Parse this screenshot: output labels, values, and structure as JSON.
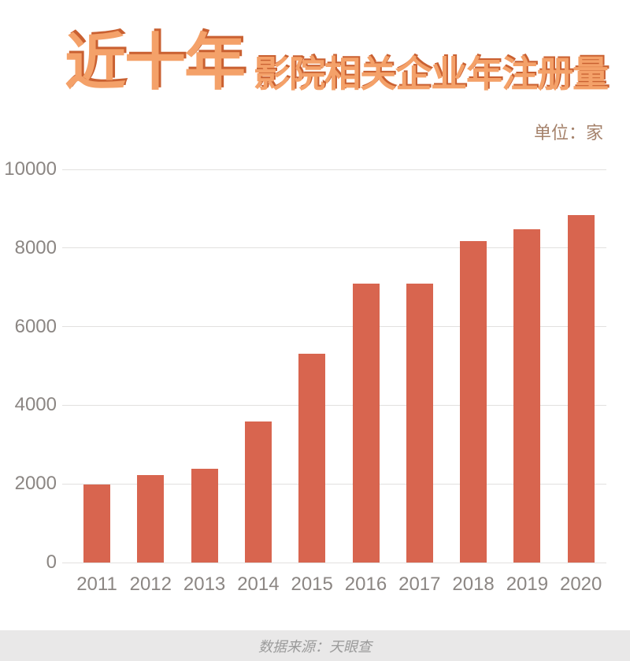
{
  "title": {
    "highlight": "近十年",
    "rest": "影院相关企业年注册量"
  },
  "unit_label": "单位：家",
  "footer": {
    "source": "数据来源：天眼查"
  },
  "colors": {
    "bar": "#d8654f",
    "title_fill": "#f4a169",
    "title_shadow": "#c96031",
    "axis_text": "#8b8683",
    "gridline": "#e2e0df",
    "unit_text": "#a5826b",
    "footer_bg": "#e9e8e8",
    "footer_text": "#9b9b9b"
  },
  "chart_data": {
    "type": "bar",
    "title": "近十年影院相关企业年注册量",
    "unit": "单位：家",
    "categories": [
      "2011",
      "2012",
      "2013",
      "2014",
      "2015",
      "2016",
      "2017",
      "2018",
      "2019",
      "2020"
    ],
    "values": [
      1990,
      2230,
      2390,
      3590,
      5320,
      7090,
      7090,
      8180,
      8470,
      8840
    ],
    "xlabel": "",
    "ylabel": "",
    "ylim": [
      0,
      10000
    ],
    "yticks": [
      0,
      2000,
      4000,
      6000,
      8000,
      10000
    ],
    "grid": true,
    "legend": false,
    "source": "数据来源：天眼查"
  }
}
